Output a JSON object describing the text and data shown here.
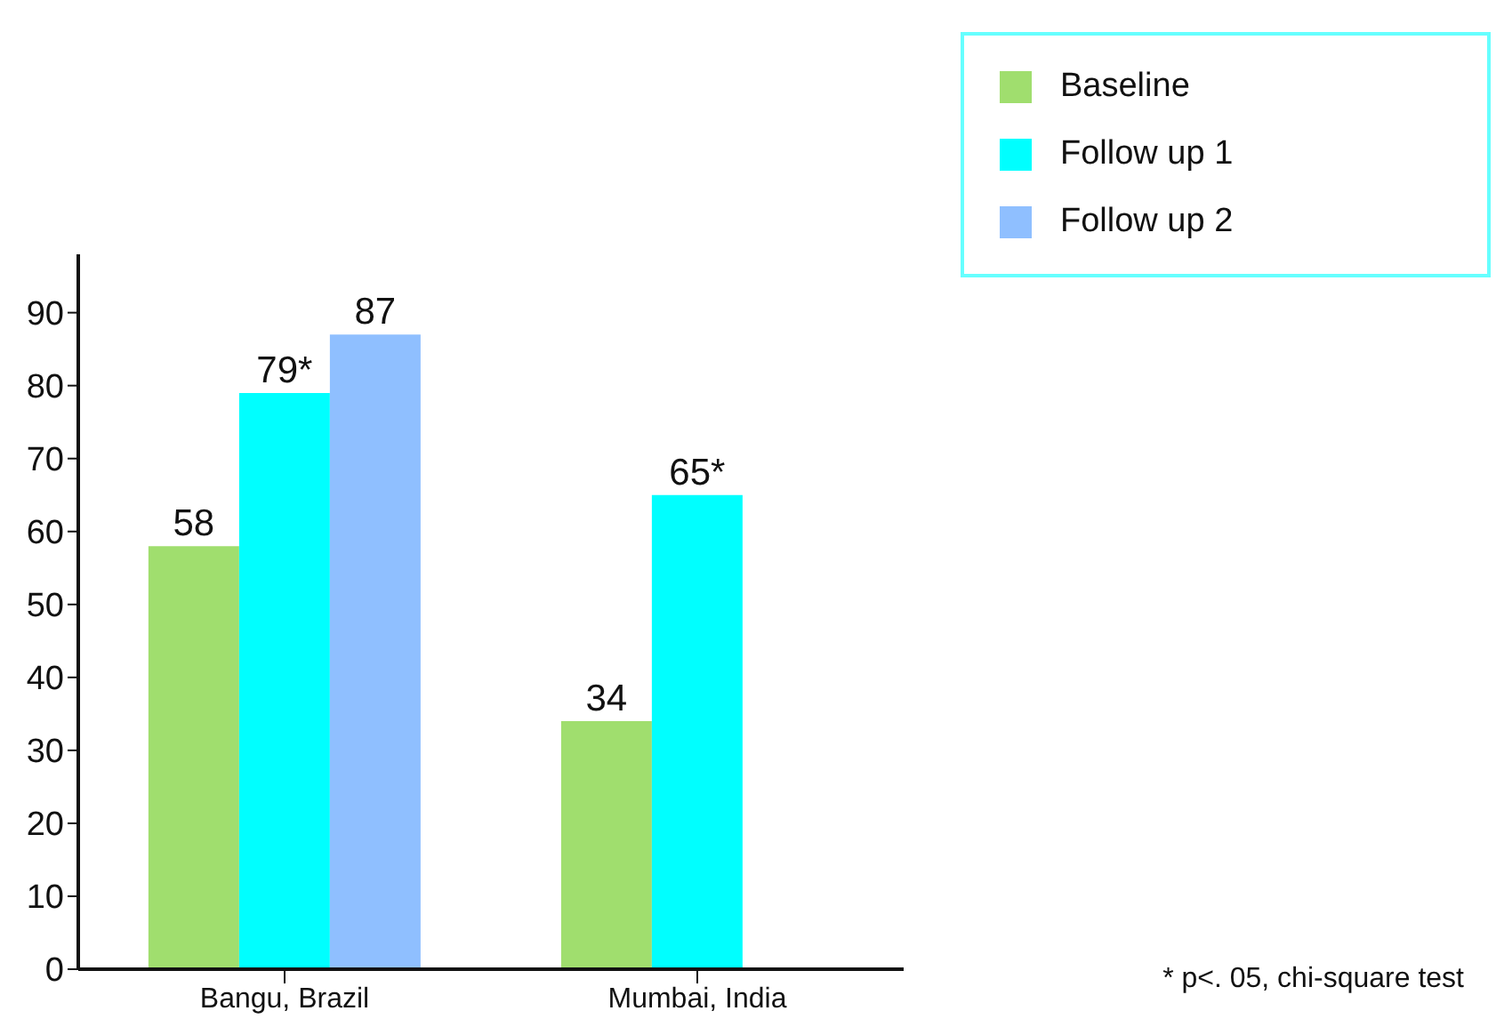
{
  "chart_data": {
    "type": "bar",
    "categories": [
      "Bangu, Brazil",
      "Mumbai, India"
    ],
    "series": [
      {
        "name": "Baseline",
        "color": "#a0de6e",
        "values": [
          58,
          34
        ],
        "value_labels": [
          "58",
          "34"
        ]
      },
      {
        "name": "Follow up 1",
        "color": "#00ffff",
        "values": [
          79,
          65
        ],
        "value_labels": [
          "79*",
          "65*"
        ]
      },
      {
        "name": "Follow up 2",
        "color": "#8fbfff",
        "values": [
          87,
          null
        ],
        "value_labels": [
          "87",
          null
        ]
      }
    ],
    "ylim": [
      0,
      98
    ],
    "yticks": [
      0,
      10,
      20,
      30,
      40,
      50,
      60,
      70,
      80,
      90
    ],
    "grid": false,
    "legend": "top right",
    "annotations": [
      "* p<. 05, chi-square test"
    ]
  }
}
